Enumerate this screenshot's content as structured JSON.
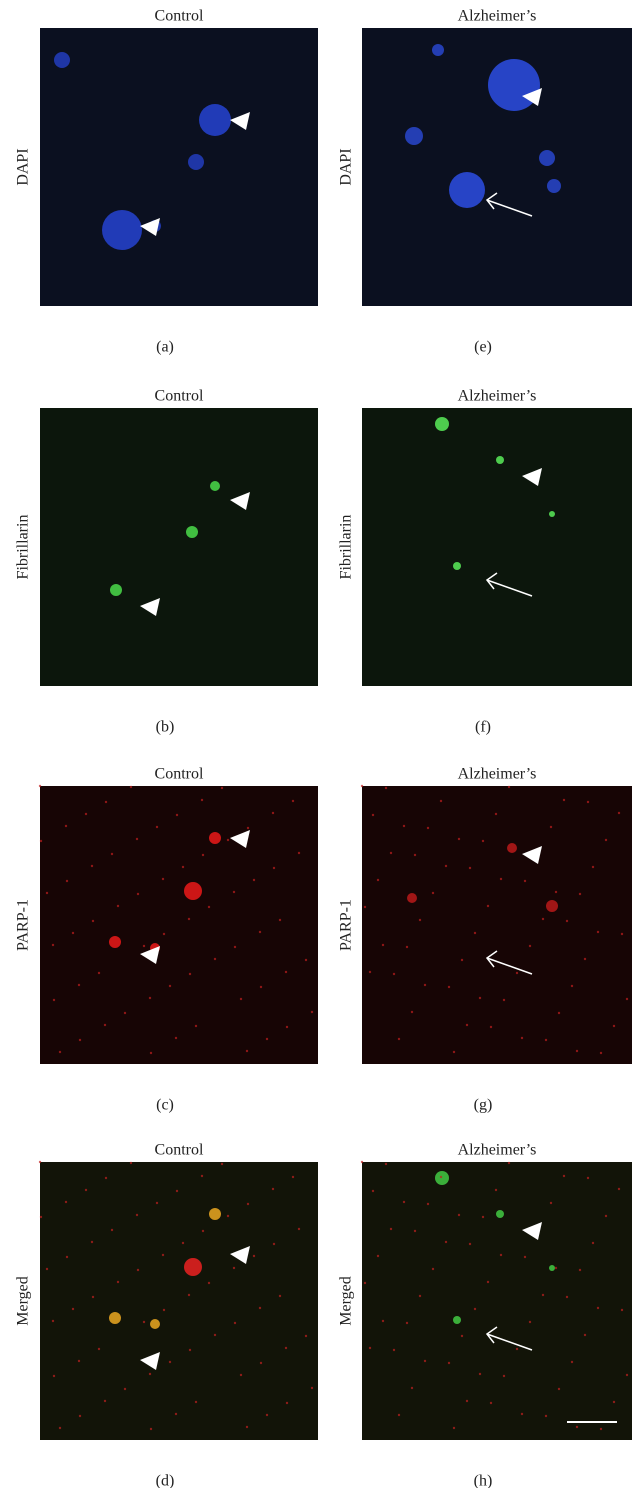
{
  "panels": [
    {
      "title": "Control",
      "stain": "DAPI",
      "label": "(a)"
    },
    {
      "title": "Alzheimer’s",
      "stain": "DAPI",
      "label": "(e)"
    },
    {
      "title": "Control",
      "stain": "Fibrillarin",
      "label": "(b)"
    },
    {
      "title": "Alzheimer’s",
      "stain": "Fibrillarin",
      "label": "(f)"
    },
    {
      "title": "Control",
      "stain": "PARP-1",
      "label": "(c)"
    },
    {
      "title": "Alzheimer’s",
      "stain": "PARP-1",
      "label": "(g)"
    },
    {
      "title": "Control",
      "stain": "Merged",
      "label": "(d)"
    },
    {
      "title": "Alzheimer’s",
      "stain": "Merged",
      "label": "(h)"
    }
  ]
}
